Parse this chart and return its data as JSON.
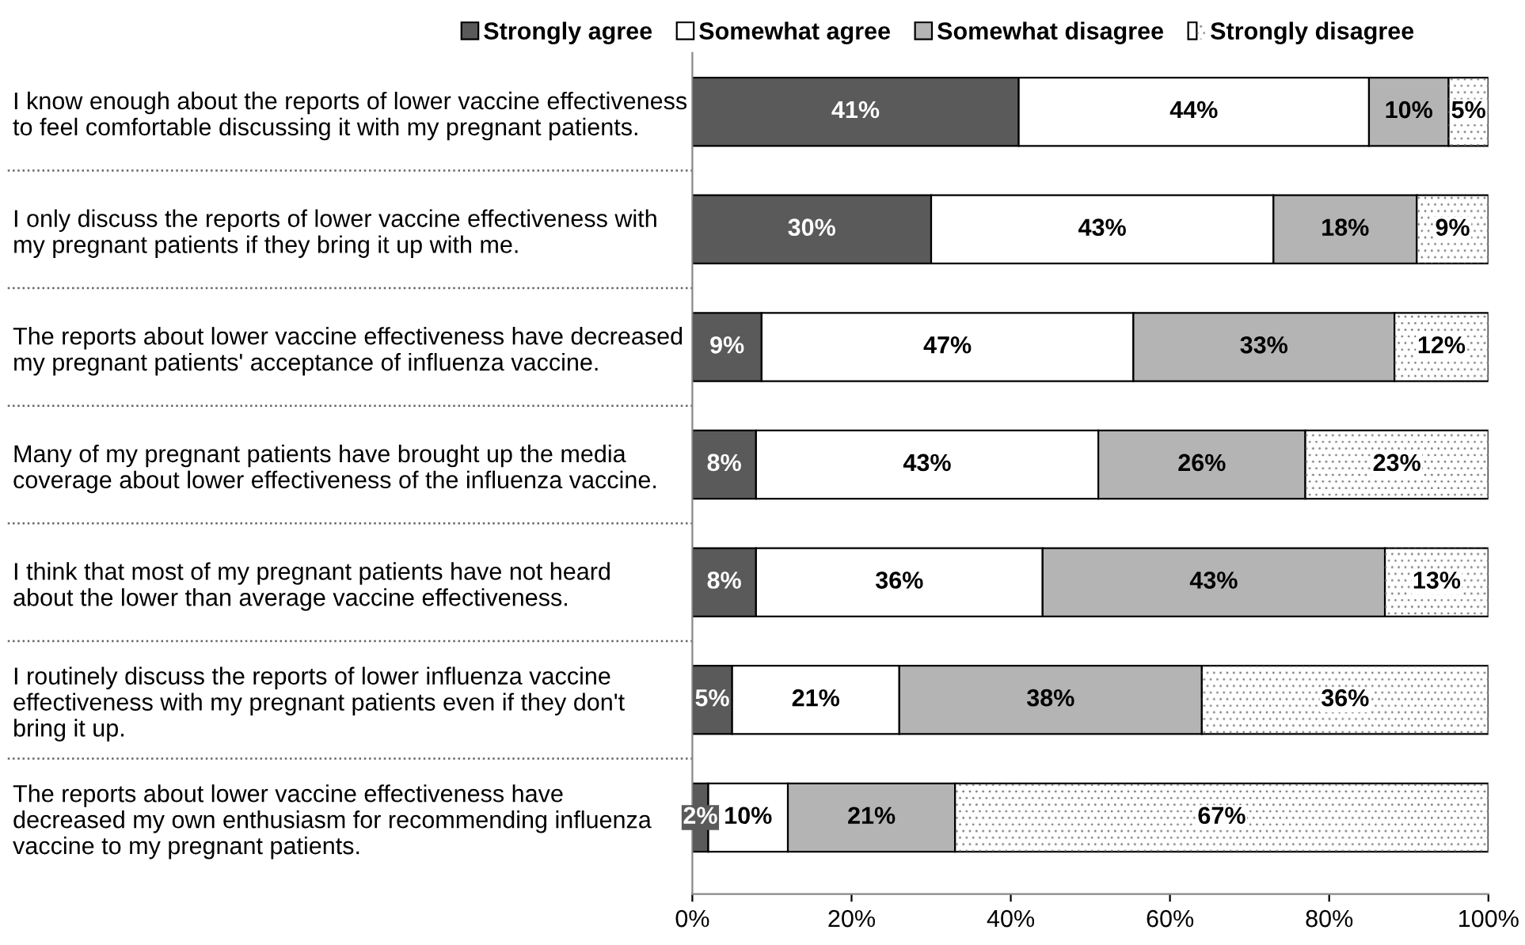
{
  "chart_data": {
    "type": "bar",
    "orientation": "horizontal",
    "stacked": true,
    "legend": "top",
    "grid": false,
    "categories": [
      "I know enough about the reports of lower vaccine effectiveness\nto feel comfortable discussing it with my pregnant patients.",
      "I only discuss the reports of lower vaccine effectiveness with\nmy pregnant patients if they bring it up with me.",
      "The reports about lower vaccine effectiveness have decreased\nmy pregnant patients' acceptance of influenza vaccine.",
      "Many of my pregnant patients have brought up the media\ncoverage about lower effectiveness of the influenza vaccine.",
      "I think that most of my pregnant patients have not heard\nabout the lower than average vaccine effectiveness.",
      "I routinely discuss the reports of lower influenza vaccine\neffectiveness with my pregnant patients even if they don't\nbring it up.",
      "The reports about lower vaccine effectiveness have\ndecreased my own enthusiasm for recommending influenza\nvaccine to my pregnant patients."
    ],
    "series": [
      {
        "name": "Strongly agree",
        "color": "#5a5a5a",
        "values": [
          41,
          30,
          8.7,
          8,
          8,
          5,
          2
        ],
        "value_labels": [
          "41%",
          "30%",
          "9%",
          "8%",
          "8%",
          "5%",
          "2%"
        ]
      },
      {
        "name": "Somewhat agree",
        "color": "#ffffff",
        "values": [
          44,
          43,
          46.7,
          43,
          36,
          21,
          10
        ],
        "value_labels": [
          "44%",
          "43%",
          "47%",
          "43%",
          "36%",
          "21%",
          "10%"
        ]
      },
      {
        "name": "Somewhat disagree",
        "color": "#b4b4b4",
        "values": [
          10,
          18,
          32.8,
          26,
          43,
          38,
          21
        ],
        "value_labels": [
          "10%",
          "18%",
          "33%",
          "26%",
          "43%",
          "38%",
          "21%"
        ]
      },
      {
        "name": "Strongly disagree",
        "color": "#ffffff",
        "values": [
          5,
          9,
          11.8,
          23,
          13,
          36,
          67
        ],
        "value_labels": [
          "5%",
          "9%",
          "12%",
          "23%",
          "13%",
          "36%",
          "67%"
        ]
      }
    ],
    "xlim": [
      0,
      100
    ],
    "xticks": [
      {
        "value": 0,
        "label": "0%"
      },
      {
        "value": 20,
        "label": "20%"
      },
      {
        "value": 40,
        "label": "40%"
      },
      {
        "value": 60,
        "label": "60%"
      },
      {
        "value": 80,
        "label": "80%"
      },
      {
        "value": 100,
        "label": "100%"
      }
    ]
  }
}
